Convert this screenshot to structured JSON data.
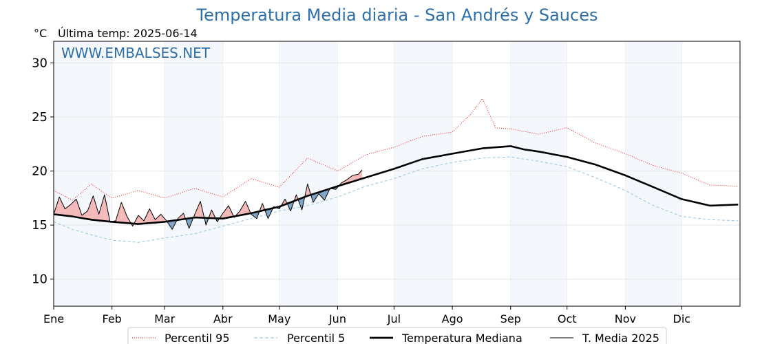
{
  "chart_data": {
    "type": "line",
    "title": "Temperatura Media diaria - San Andrés y Sauces",
    "unit_label": "°C",
    "last_temp_label": "Última temp: 2025-06-14",
    "watermark": "WWW.EMBALSES.NET",
    "ylim": [
      7.5,
      32
    ],
    "yticks": [
      10,
      15,
      20,
      25,
      30
    ],
    "xlim": [
      0,
      365
    ],
    "months": [
      {
        "label": "Ene",
        "day": 0
      },
      {
        "label": "Feb",
        "day": 31
      },
      {
        "label": "Mar",
        "day": 59
      },
      {
        "label": "Abr",
        "day": 90
      },
      {
        "label": "May",
        "day": 120
      },
      {
        "label": "Jun",
        "day": 151
      },
      {
        "label": "Jul",
        "day": 181
      },
      {
        "label": "Ago",
        "day": 212
      },
      {
        "label": "Sep",
        "day": 243
      },
      {
        "label": "Oct",
        "day": 273
      },
      {
        "label": "Nov",
        "day": 304
      },
      {
        "label": "Dic",
        "day": 334
      }
    ],
    "shaded_month_indices": [
      0,
      2,
      4,
      6,
      8,
      10
    ],
    "grid": true,
    "legend_position": "bottom",
    "series": [
      {
        "name": "Percentil 95",
        "color": "#ff0000",
        "style": "dotted",
        "x": [
          0,
          10,
          20,
          31,
          45,
          59,
          75,
          90,
          105,
          120,
          135,
          151,
          166,
          181,
          196,
          212,
          222,
          228,
          235,
          243,
          258,
          273,
          288,
          304,
          319,
          334,
          349,
          364
        ],
        "values": [
          18.2,
          17.3,
          18.8,
          17.5,
          18.2,
          17.5,
          18.4,
          17.6,
          19.3,
          18.5,
          21.2,
          20.0,
          21.5,
          22.2,
          23.2,
          23.6,
          25.3,
          26.7,
          24.0,
          23.9,
          23.4,
          24.0,
          22.6,
          21.6,
          20.5,
          19.8,
          18.7,
          18.6
        ]
      },
      {
        "name": "Percentil 5",
        "color": "#9ecae1",
        "style": "dashed",
        "x": [
          0,
          10,
          20,
          31,
          45,
          59,
          75,
          90,
          105,
          120,
          135,
          151,
          166,
          181,
          196,
          212,
          228,
          243,
          258,
          273,
          288,
          304,
          319,
          334,
          349,
          364
        ],
        "values": [
          15.3,
          14.6,
          14.1,
          13.6,
          13.4,
          13.8,
          14.2,
          14.9,
          15.6,
          16.3,
          16.8,
          17.6,
          18.6,
          19.3,
          20.2,
          20.8,
          21.2,
          21.3,
          20.9,
          20.4,
          19.4,
          18.2,
          16.8,
          15.8,
          15.5,
          15.4
        ]
      },
      {
        "name": "Temperatura Mediana",
        "color": "#000000",
        "style": "solid-thick",
        "x": [
          0,
          10,
          20,
          31,
          45,
          59,
          75,
          90,
          105,
          120,
          135,
          151,
          166,
          181,
          196,
          212,
          228,
          243,
          250,
          258,
          273,
          288,
          304,
          319,
          334,
          349,
          364
        ],
        "values": [
          16.0,
          15.8,
          15.5,
          15.3,
          15.1,
          15.3,
          15.7,
          15.6,
          16.1,
          16.7,
          17.7,
          18.6,
          19.4,
          20.2,
          21.1,
          21.6,
          22.1,
          22.3,
          22.0,
          21.8,
          21.3,
          20.6,
          19.6,
          18.5,
          17.4,
          16.8,
          16.9
        ]
      },
      {
        "name": "T. Media 2025",
        "color": "#000000",
        "style": "solid-thin",
        "x": [
          0,
          3,
          6,
          9,
          12,
          15,
          18,
          21,
          24,
          27,
          30,
          33,
          36,
          39,
          42,
          45,
          48,
          51,
          54,
          57,
          60,
          63,
          66,
          69,
          72,
          75,
          78,
          81,
          84,
          87,
          90,
          93,
          96,
          99,
          102,
          105,
          108,
          111,
          114,
          117,
          120,
          123,
          126,
          129,
          132,
          135,
          138,
          141,
          144,
          147,
          150,
          153,
          156,
          159,
          162,
          164
        ],
        "values": [
          16.0,
          17.6,
          16.5,
          16.9,
          17.4,
          15.9,
          16.3,
          17.7,
          16.0,
          17.8,
          15.3,
          15.4,
          17.1,
          15.8,
          14.9,
          15.9,
          15.4,
          16.5,
          15.5,
          16.0,
          15.4,
          14.6,
          15.6,
          16.1,
          14.7,
          16.0,
          17.2,
          15.0,
          16.4,
          15.3,
          16.1,
          16.8,
          15.7,
          16.3,
          17.2,
          16.0,
          15.6,
          17.0,
          15.6,
          16.7,
          16.5,
          17.4,
          16.3,
          17.8,
          16.4,
          18.8,
          17.1,
          17.9,
          17.3,
          18.4,
          18.3,
          18.9,
          19.2,
          19.6,
          19.7,
          20.1
        ]
      }
    ],
    "fill_colors": {
      "above": "#f4b9b9",
      "below": "#7fa3c4"
    }
  }
}
